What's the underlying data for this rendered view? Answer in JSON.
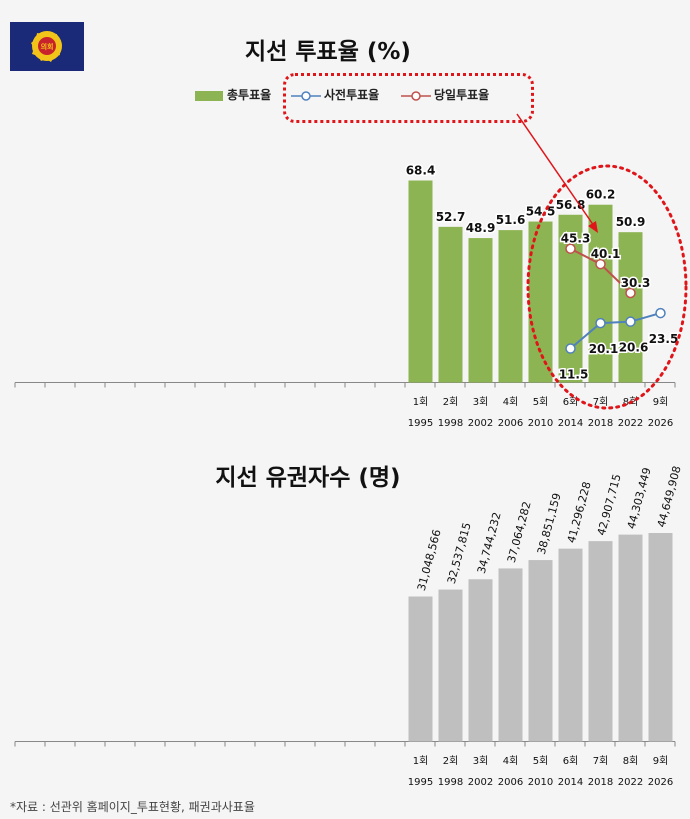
{
  "chart_data": [
    {
      "type": "bar",
      "title": "지선 투표율 (%)",
      "categories": [
        "1회",
        "2회",
        "3회",
        "4회",
        "5회",
        "6회",
        "7회",
        "8회",
        "9회"
      ],
      "years": [
        "1995",
        "1998",
        "2002",
        "2006",
        "2010",
        "2014",
        "2018",
        "2022",
        "2026"
      ],
      "series": [
        {
          "name": "총투표율",
          "type": "bar",
          "color": "#8db452",
          "values": [
            68.4,
            52.7,
            48.9,
            51.6,
            54.5,
            56.8,
            60.2,
            50.9,
            null
          ]
        },
        {
          "name": "사전투표율",
          "type": "line",
          "color": "#4f81bd",
          "values": [
            null,
            null,
            null,
            null,
            null,
            11.5,
            20.1,
            20.6,
            23.5
          ]
        },
        {
          "name": "당일투표율",
          "type": "line",
          "color": "#c0504d",
          "values": [
            null,
            null,
            null,
            null,
            null,
            45.3,
            40.1,
            30.3,
            null
          ]
        }
      ],
      "ylim": [
        0,
        70
      ]
    },
    {
      "type": "bar",
      "title": "지선 유권자수 (명)",
      "categories": [
        "1회",
        "2회",
        "3회",
        "4회",
        "5회",
        "6회",
        "7회",
        "8회",
        "9회"
      ],
      "years": [
        "1995",
        "1998",
        "2002",
        "2006",
        "2010",
        "2014",
        "2018",
        "2022",
        "2026"
      ],
      "labels": [
        "31,048,566",
        "32,537,815",
        "34,744,232",
        "37,064,282",
        "38,851,159",
        "41,296,228",
        "42,907,715",
        "44,303,449",
        "44,649,908"
      ],
      "values": [
        31048566,
        32537815,
        34744232,
        37064282,
        38851159,
        41296228,
        42907715,
        44303449,
        44649908
      ],
      "color": "#bfbfbf",
      "ylim": [
        0,
        70000000
      ]
    }
  ],
  "logo": {
    "text": "의회"
  },
  "source": "*자료 : 선관위 홈페이지_투표현황, 패권과사표율"
}
